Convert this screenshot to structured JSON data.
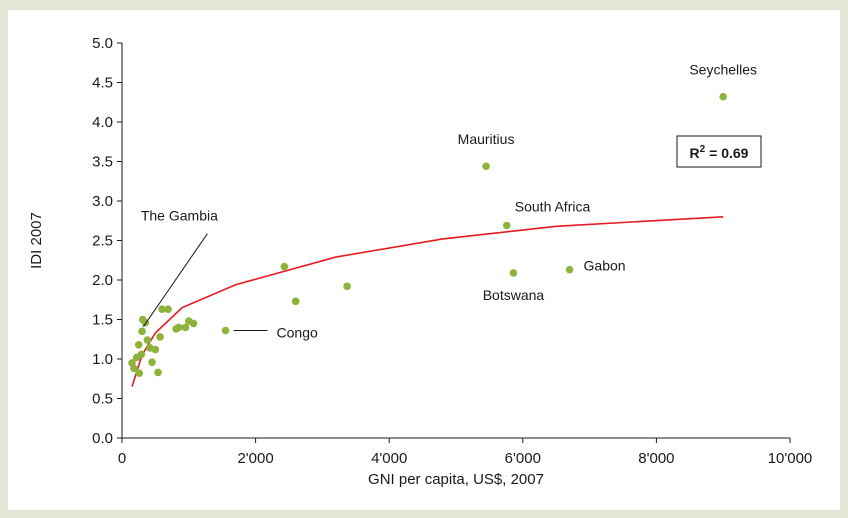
{
  "colors": {
    "background": "#e3e6d6",
    "point": "#8db33a",
    "trend": "#e31b23",
    "axis": "#1a1a1a"
  },
  "chart_data": {
    "type": "scatter",
    "xlabel": "GNI per capita, US$, 2007",
    "ylabel": "IDI 2007",
    "xlim": [
      0,
      10000
    ],
    "ylim": [
      0,
      5
    ],
    "x_ticks": [
      0,
      2000,
      4000,
      6000,
      8000,
      10000
    ],
    "x_tick_labels": [
      "0",
      "2'000",
      "4'000",
      "6'000",
      "8'000",
      "10'000"
    ],
    "y_ticks": [
      0,
      0.5,
      1,
      1.5,
      2,
      2.5,
      3,
      3.5,
      4,
      4.5,
      5
    ],
    "y_tick_labels": [
      "0.0",
      "0.5",
      "1.0",
      "1.5",
      "2.0",
      "2.5",
      "3.0",
      "3.5",
      "4.0",
      "4.5",
      "5.0"
    ],
    "grid": false,
    "points": [
      {
        "x": 150,
        "y": 0.95
      },
      {
        "x": 180,
        "y": 0.88
      },
      {
        "x": 220,
        "y": 1.02
      },
      {
        "x": 250,
        "y": 1.18
      },
      {
        "x": 260,
        "y": 0.82
      },
      {
        "x": 290,
        "y": 1.06
      },
      {
        "x": 300,
        "y": 1.35
      },
      {
        "x": 310,
        "y": 1.5
      },
      {
        "x": 350,
        "y": 1.46
      },
      {
        "x": 380,
        "y": 1.24
      },
      {
        "x": 420,
        "y": 1.14
      },
      {
        "x": 450,
        "y": 0.96
      },
      {
        "x": 500,
        "y": 1.12
      },
      {
        "x": 540,
        "y": 0.83
      },
      {
        "x": 570,
        "y": 1.28
      },
      {
        "x": 600,
        "y": 1.63
      },
      {
        "x": 690,
        "y": 1.63
      },
      {
        "x": 810,
        "y": 1.38
      },
      {
        "x": 850,
        "y": 1.4
      },
      {
        "x": 950,
        "y": 1.4
      },
      {
        "x": 1000,
        "y": 1.48
      },
      {
        "x": 1070,
        "y": 1.45
      },
      {
        "x": 1550,
        "y": 1.36
      },
      {
        "x": 2430,
        "y": 2.17
      },
      {
        "x": 2600,
        "y": 1.73
      },
      {
        "x": 3370,
        "y": 1.92
      },
      {
        "x": 5450,
        "y": 3.44
      },
      {
        "x": 5760,
        "y": 2.69
      },
      {
        "x": 5860,
        "y": 2.09
      },
      {
        "x": 6700,
        "y": 2.13
      },
      {
        "x": 9000,
        "y": 4.32
      }
    ],
    "trendline": {
      "points": [
        {
          "x": 150,
          "y": 0.65
        },
        {
          "x": 300,
          "y": 1.05
        },
        {
          "x": 500,
          "y": 1.33
        },
        {
          "x": 900,
          "y": 1.65
        },
        {
          "x": 1700,
          "y": 1.94
        },
        {
          "x": 3200,
          "y": 2.29
        },
        {
          "x": 4800,
          "y": 2.52
        },
        {
          "x": 6500,
          "y": 2.68
        },
        {
          "x": 9000,
          "y": 2.8
        }
      ]
    },
    "annotations": [
      {
        "text": "Seychelles",
        "x": 9000,
        "y": 4.32
      },
      {
        "text": "Mauritius",
        "x": 5450,
        "y": 3.44
      },
      {
        "text": "South Africa",
        "x": 5760,
        "y": 2.69
      },
      {
        "text": "Gabon",
        "x": 6700,
        "y": 2.13
      },
      {
        "text": "Botswana",
        "x": 5860,
        "y": 2.09
      },
      {
        "text": "Congo",
        "x": 1550,
        "y": 1.36
      },
      {
        "text": "The Gambia",
        "x": 350,
        "y": 1.46
      }
    ],
    "r2_label": "R",
    "r2_exp": "2",
    "r2_value": " = 0.69"
  }
}
